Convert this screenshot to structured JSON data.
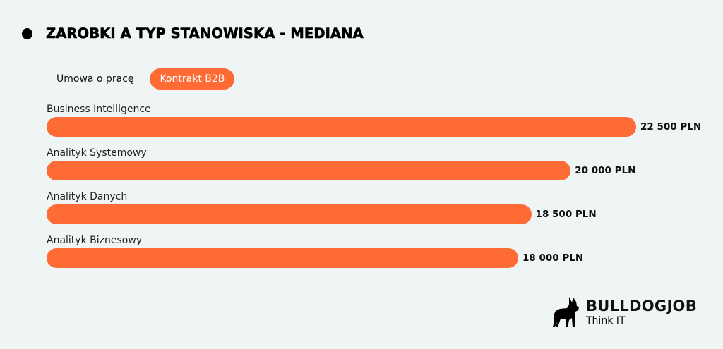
{
  "header": {
    "title": "ZAROBKI A TYP STANOWISKA - MEDIANA",
    "bullet_icon": "filled-circle"
  },
  "tabs": [
    {
      "label": "Umowa o pracę",
      "active": false
    },
    {
      "label": "Kontrakt B2B",
      "active": true
    }
  ],
  "colors": {
    "accent": "#ff6b35",
    "background": "#eff4f4",
    "text": "#111111"
  },
  "chart_data": {
    "type": "bar",
    "orientation": "horizontal",
    "title": "ZAROBKI A TYP STANOWISKA - MEDIANA",
    "subtitle": "Kontrakt B2B",
    "categories": [
      "Business Intelligence",
      "Analityk Systemowy",
      "Analityk Danych",
      "Analityk Biznesowy"
    ],
    "values": [
      22500,
      20000,
      18500,
      18000
    ],
    "value_labels": [
      "22 500 PLN",
      "20 000 PLN",
      "18 500 PLN",
      "18 000 PLN"
    ],
    "unit": "PLN",
    "xlabel": "",
    "ylabel": "",
    "grid": false,
    "legend": false,
    "bar_color": "#ff6b35"
  },
  "logo": {
    "name": "BULLDOGJOB",
    "tagline": "Think IT",
    "icon": "bulldog-silhouette-icon"
  }
}
